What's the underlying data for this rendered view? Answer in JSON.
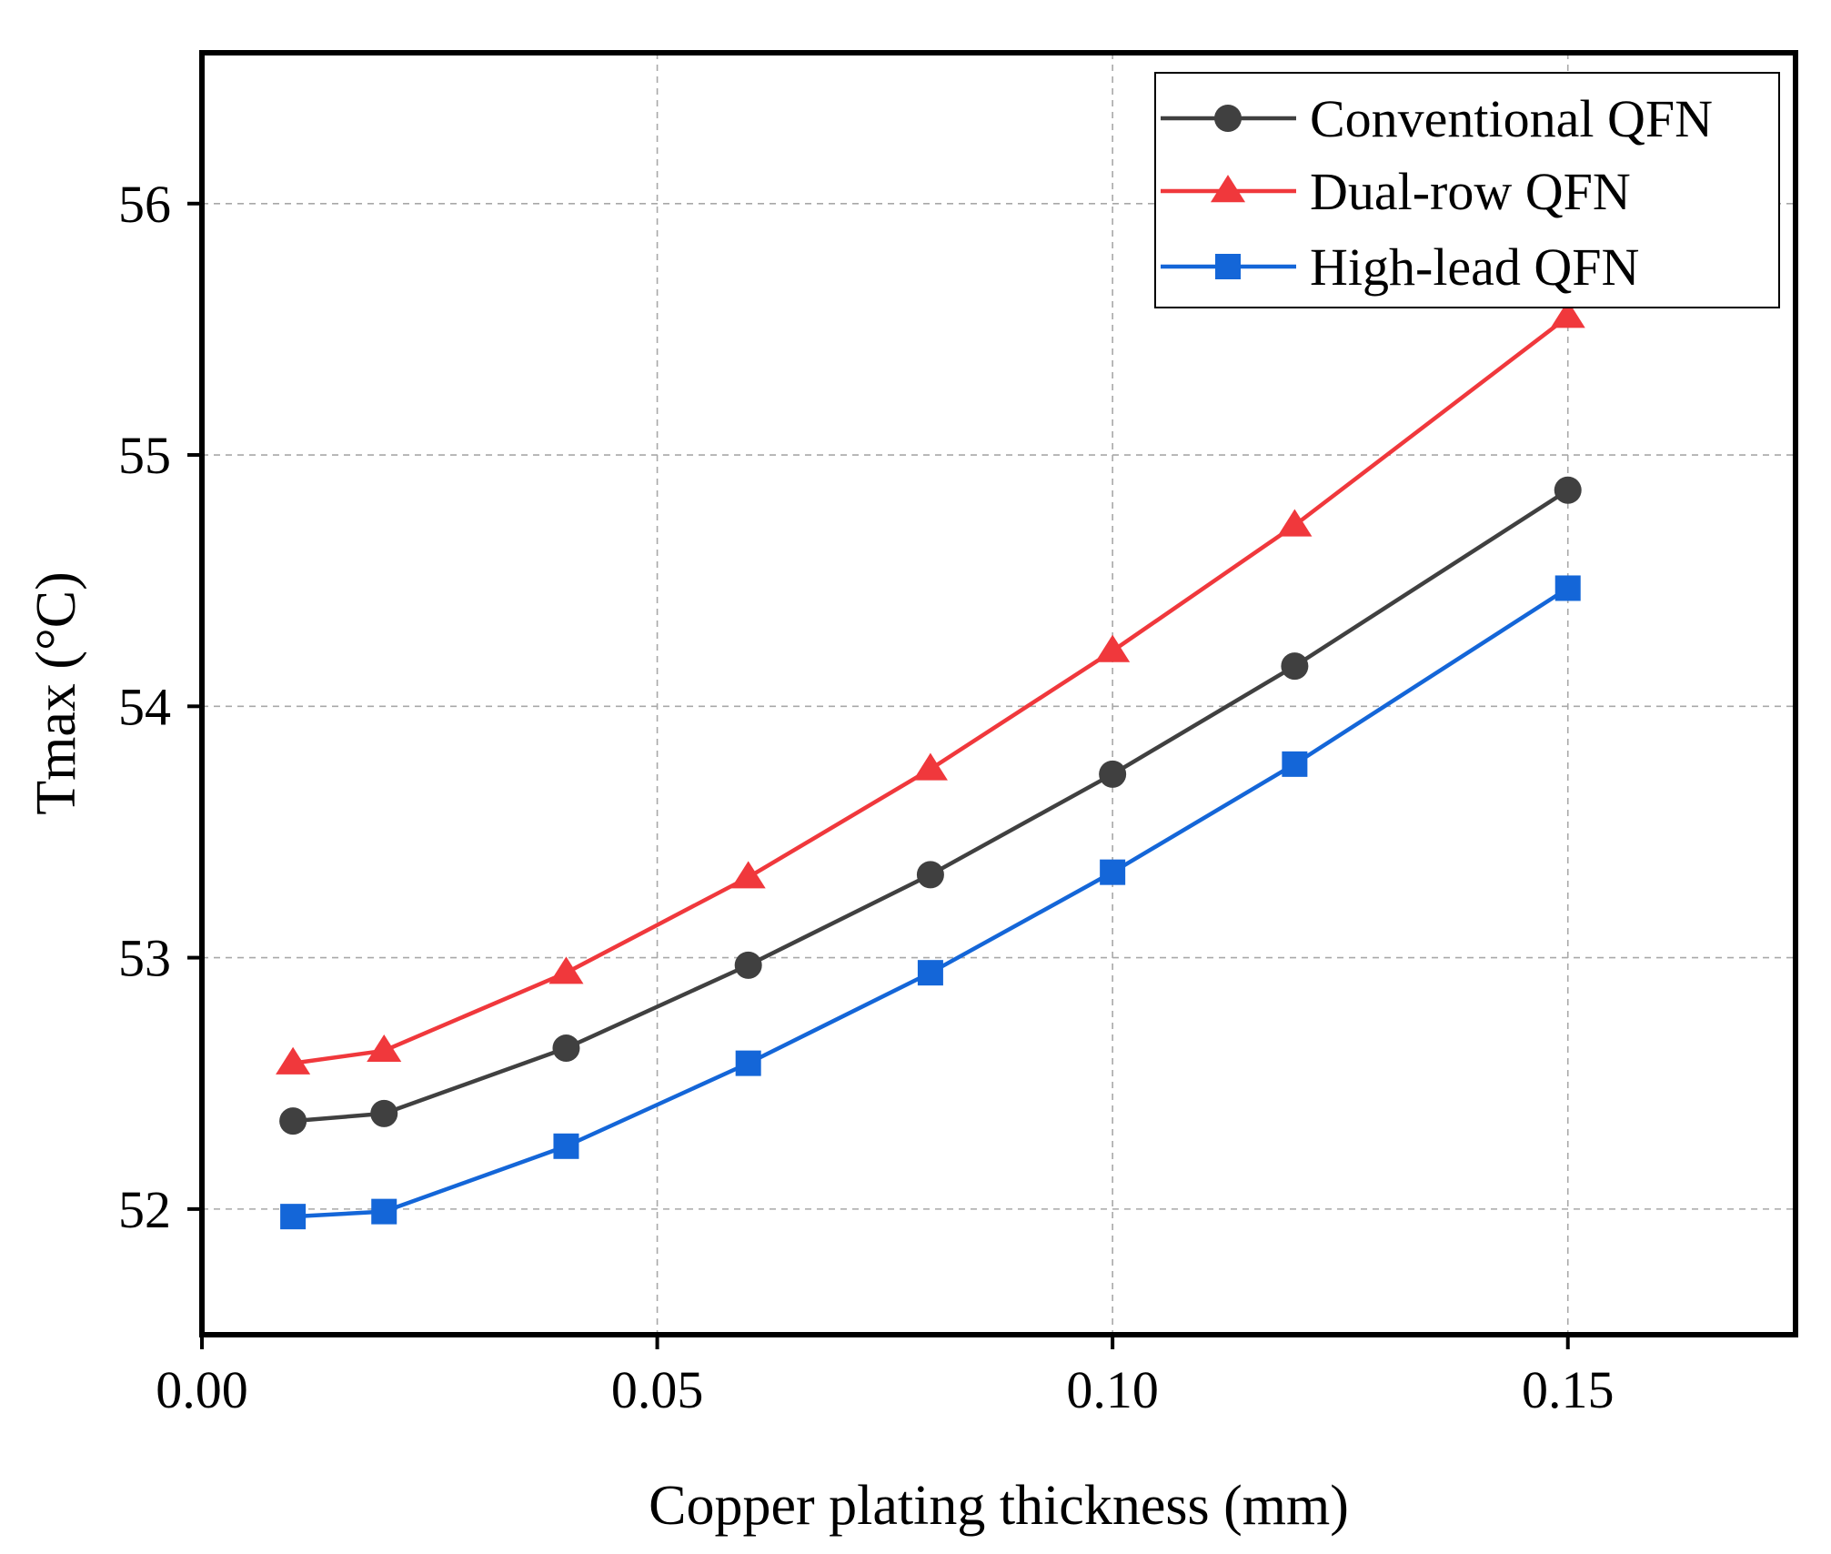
{
  "chart_data": {
    "type": "line",
    "title": "",
    "xlabel": "Copper plating thickness (mm)",
    "ylabel": "Tmax (°C)",
    "xlim": [
      0.0,
      0.175
    ],
    "ylim": [
      51.5,
      56.6
    ],
    "x_ticks": [
      0.0,
      0.05,
      0.1,
      0.15
    ],
    "x_tick_labels": [
      "0.00",
      "0.05",
      "0.10",
      "0.15"
    ],
    "y_ticks": [
      52,
      53,
      54,
      55,
      56
    ],
    "y_tick_labels": [
      "52",
      "53",
      "54",
      "55",
      "56"
    ],
    "grid": true,
    "legend_position": "top-right",
    "x": [
      0.01,
      0.02,
      0.04,
      0.06,
      0.08,
      0.1,
      0.12,
      0.15
    ],
    "series": [
      {
        "name": "Conventional QFN",
        "marker": "circle",
        "color": "#404040",
        "values": [
          52.35,
          52.38,
          52.64,
          52.97,
          53.33,
          53.73,
          54.16,
          54.86
        ]
      },
      {
        "name": "Dual-row QFN",
        "marker": "triangle",
        "color": "#f0383c",
        "values": [
          52.58,
          52.63,
          52.94,
          53.32,
          53.75,
          54.22,
          54.72,
          55.55
        ]
      },
      {
        "name": "High-lead QFN",
        "marker": "square",
        "color": "#1466d8",
        "values": [
          51.97,
          51.99,
          52.25,
          52.58,
          52.94,
          53.34,
          53.77,
          54.47
        ]
      }
    ]
  }
}
